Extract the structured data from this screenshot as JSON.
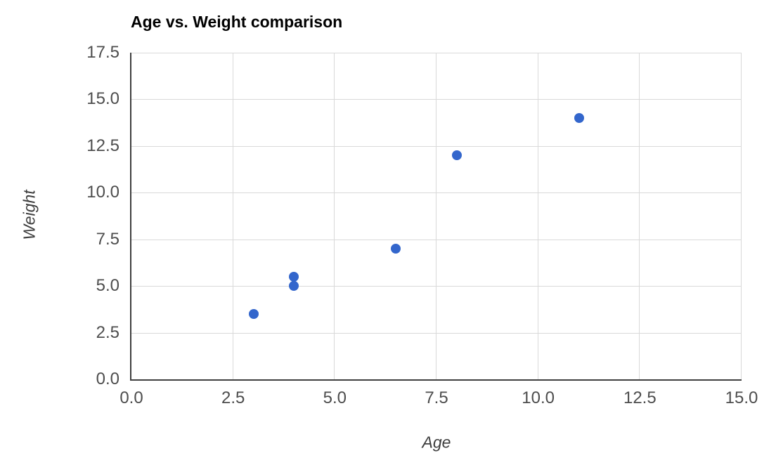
{
  "chart_data": {
    "type": "scatter",
    "title": "Age vs. Weight comparison",
    "xlabel": "Age",
    "ylabel": "Weight",
    "series": [
      {
        "name": "Weight",
        "points": [
          {
            "x": 3,
            "y": 3.5
          },
          {
            "x": 4,
            "y": 5
          },
          {
            "x": 4,
            "y": 5.5
          },
          {
            "x": 6.5,
            "y": 7
          },
          {
            "x": 8,
            "y": 12
          },
          {
            "x": 11,
            "y": 14
          }
        ]
      }
    ],
    "xlim": [
      0,
      15
    ],
    "ylim": [
      0,
      17.5
    ],
    "xticks": [
      0,
      2.5,
      5,
      7.5,
      10,
      12.5,
      15
    ],
    "yticks": [
      0,
      2.5,
      5,
      7.5,
      10,
      12.5,
      15,
      17.5
    ],
    "tick_label_format": "one-decimal",
    "grid": true,
    "legend": "none",
    "colors": {
      "point": "#3366cc",
      "grid": "#d9d9d9",
      "spine": "#3f3f3f",
      "tick_label": "#4d4d4d",
      "axis_label": "#3d3d3d",
      "title": "#000000",
      "background": "#ffffff"
    }
  }
}
